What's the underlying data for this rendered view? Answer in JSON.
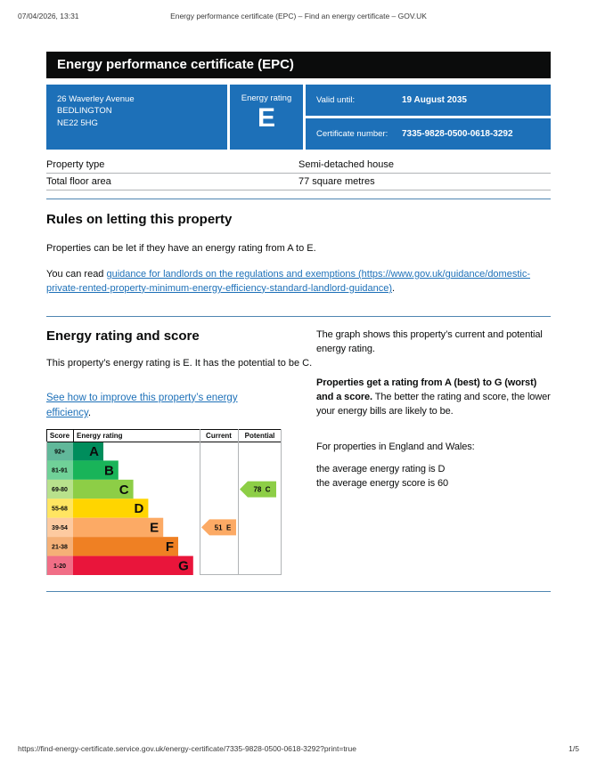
{
  "print_header": {
    "datetime": "07/04/2026, 13:31",
    "title": "Energy performance certificate (EPC) – Find an energy certificate – GOV.UK"
  },
  "banner": {
    "title": "Energy performance certificate (EPC)"
  },
  "summary": {
    "address_lines": [
      "26 Waverley Avenue",
      "BEDLINGTON",
      "NE22 5HG"
    ],
    "rating_label": "Energy rating",
    "rating_value": "E",
    "valid_until_label": "Valid until:",
    "valid_until_value": "19 August 2035",
    "certificate_number_label": "Certificate number:",
    "certificate_number_value": "7335-9828-0500-0618-3292"
  },
  "property_table": {
    "rows": [
      {
        "label": "Property type",
        "value": "Semi-detached house"
      },
      {
        "label": "Total floor area",
        "value": "77 square metres"
      }
    ]
  },
  "letting": {
    "heading": "Rules on letting this property",
    "para1": "Properties can be let if they have an energy rating from A to E.",
    "para2_prefix": "You can read ",
    "para2_link": "guidance for landlords on the regulations and exemptions (https://www.gov.uk/guidance/domestic-private-rented-property-minimum-energy-efficiency-standard-landlord-guidance)",
    "para2_suffix": "."
  },
  "rating_section": {
    "heading": "Energy rating and score",
    "para1": "This property’s energy rating is E. It has the potential to be C.",
    "link": "See how to improve this property’s energy efficiency",
    "link_suffix": ".",
    "right_para1": "The graph shows this property’s current and potential energy rating.",
    "right_para2_bold": "Properties get a rating from A (best) to G (worst) and a score.",
    "right_para2_rest": " The better the rating and score, the lower your energy bills are likely to be.",
    "right_para3": "For properties in England and Wales:",
    "right_line1": "the average energy rating is D",
    "right_line2": "the average energy score is 60"
  },
  "chart_data": {
    "type": "bar",
    "title": "Energy efficiency rating chart",
    "columns": [
      "Score",
      "Energy rating",
      "Current",
      "Potential"
    ],
    "bands": [
      {
        "score_range": "92+",
        "letter": "A",
        "color": "#008d5c"
      },
      {
        "score_range": "81-91",
        "letter": "B",
        "color": "#19b459"
      },
      {
        "score_range": "69-80",
        "letter": "C",
        "color": "#8dce46"
      },
      {
        "score_range": "55-68",
        "letter": "D",
        "color": "#ffd500"
      },
      {
        "score_range": "39-54",
        "letter": "E",
        "color": "#fcaa65"
      },
      {
        "score_range": "21-38",
        "letter": "F",
        "color": "#ef8023"
      },
      {
        "score_range": "1-20",
        "letter": "G",
        "color": "#e9153b"
      }
    ],
    "current": {
      "score": 51,
      "rating": "E",
      "band_index": 4
    },
    "potential": {
      "score": 78,
      "rating": "C",
      "band_index": 2
    }
  },
  "print_footer": {
    "url": "https://find-energy-certificate.service.gov.uk/energy-certificate/7335-9828-0500-0618-3292?print=true",
    "page": "1/5"
  },
  "colors": {
    "govuk_blue": "#1d70b8",
    "banner_black": "#0b0c0c",
    "divider_blue": "#4f86b2",
    "table_border": "#b1b4b6",
    "link_blue": "#1d70b8",
    "line_black": "#0b0c0c",
    "line_gray": "#b1b4b6"
  }
}
